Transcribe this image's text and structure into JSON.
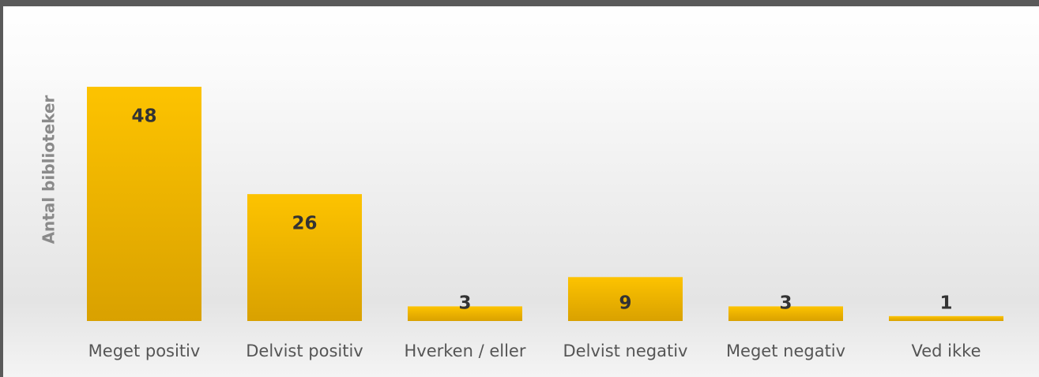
{
  "chart_data": {
    "type": "bar",
    "y_axis_label": "Antal biblioteker",
    "categories": [
      "Meget positiv",
      "Delvist positiv",
      "Hverken / eller",
      "Delvist negativ",
      "Meget negativ",
      "Ved ikke"
    ],
    "values": [
      48,
      26,
      3,
      9,
      3,
      1
    ],
    "color": "#f7b900"
  }
}
